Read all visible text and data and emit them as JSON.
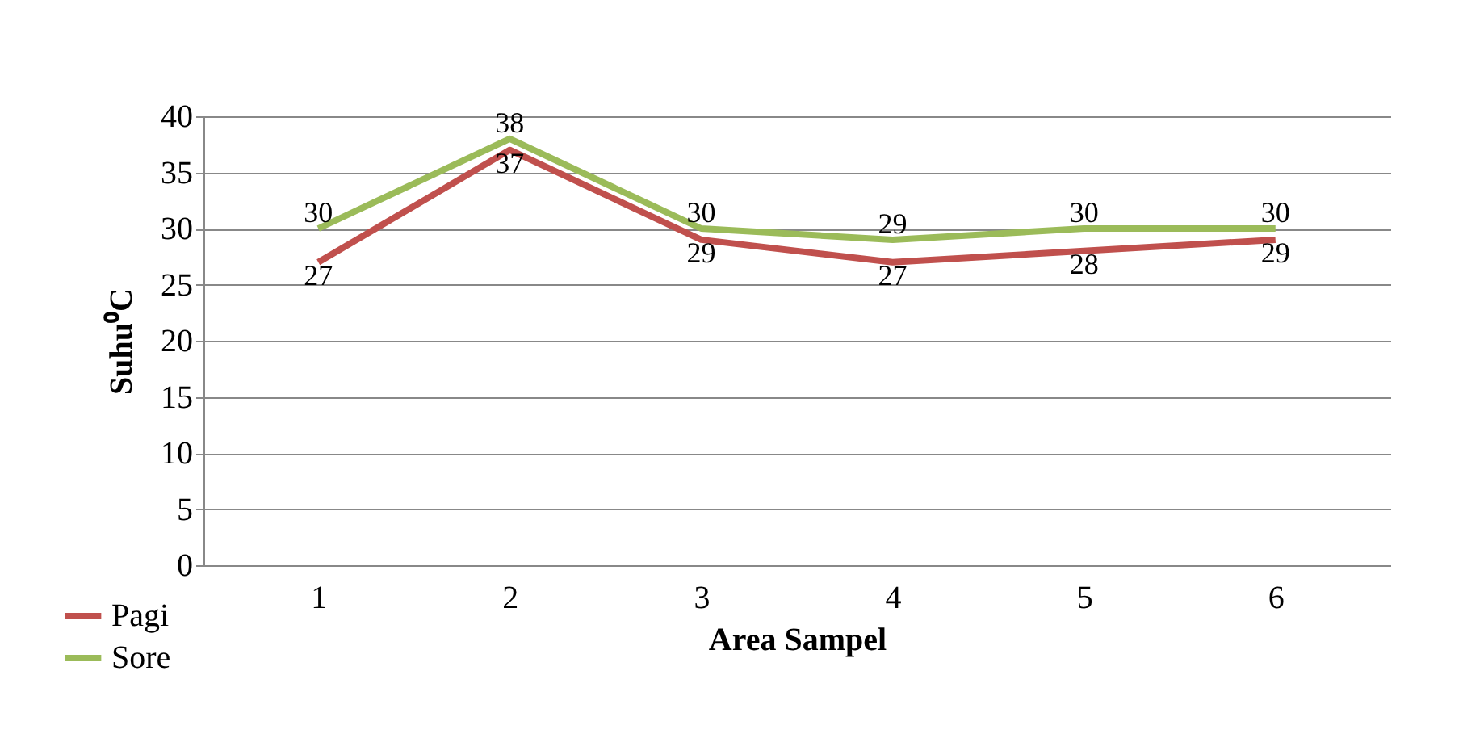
{
  "chart_data": {
    "type": "line",
    "xlabel": "Area Sampel",
    "ylabel": "Suhu⁰C",
    "categories": [
      "1",
      "2",
      "3",
      "4",
      "5",
      "6"
    ],
    "series": [
      {
        "name": "Pagi",
        "color": "#c0504d",
        "values": [
          27,
          37,
          29,
          27,
          28,
          29
        ]
      },
      {
        "name": "Sore",
        "color": "#9bbb59",
        "values": [
          30,
          38,
          30,
          29,
          30,
          30
        ]
      }
    ],
    "ylim": [
      0,
      40
    ],
    "yticks": [
      0,
      5,
      10,
      15,
      20,
      25,
      30,
      35,
      40
    ],
    "grid": "y",
    "legend": "bottom left",
    "data_labels": true,
    "marker": "none",
    "line_style": "solid"
  }
}
